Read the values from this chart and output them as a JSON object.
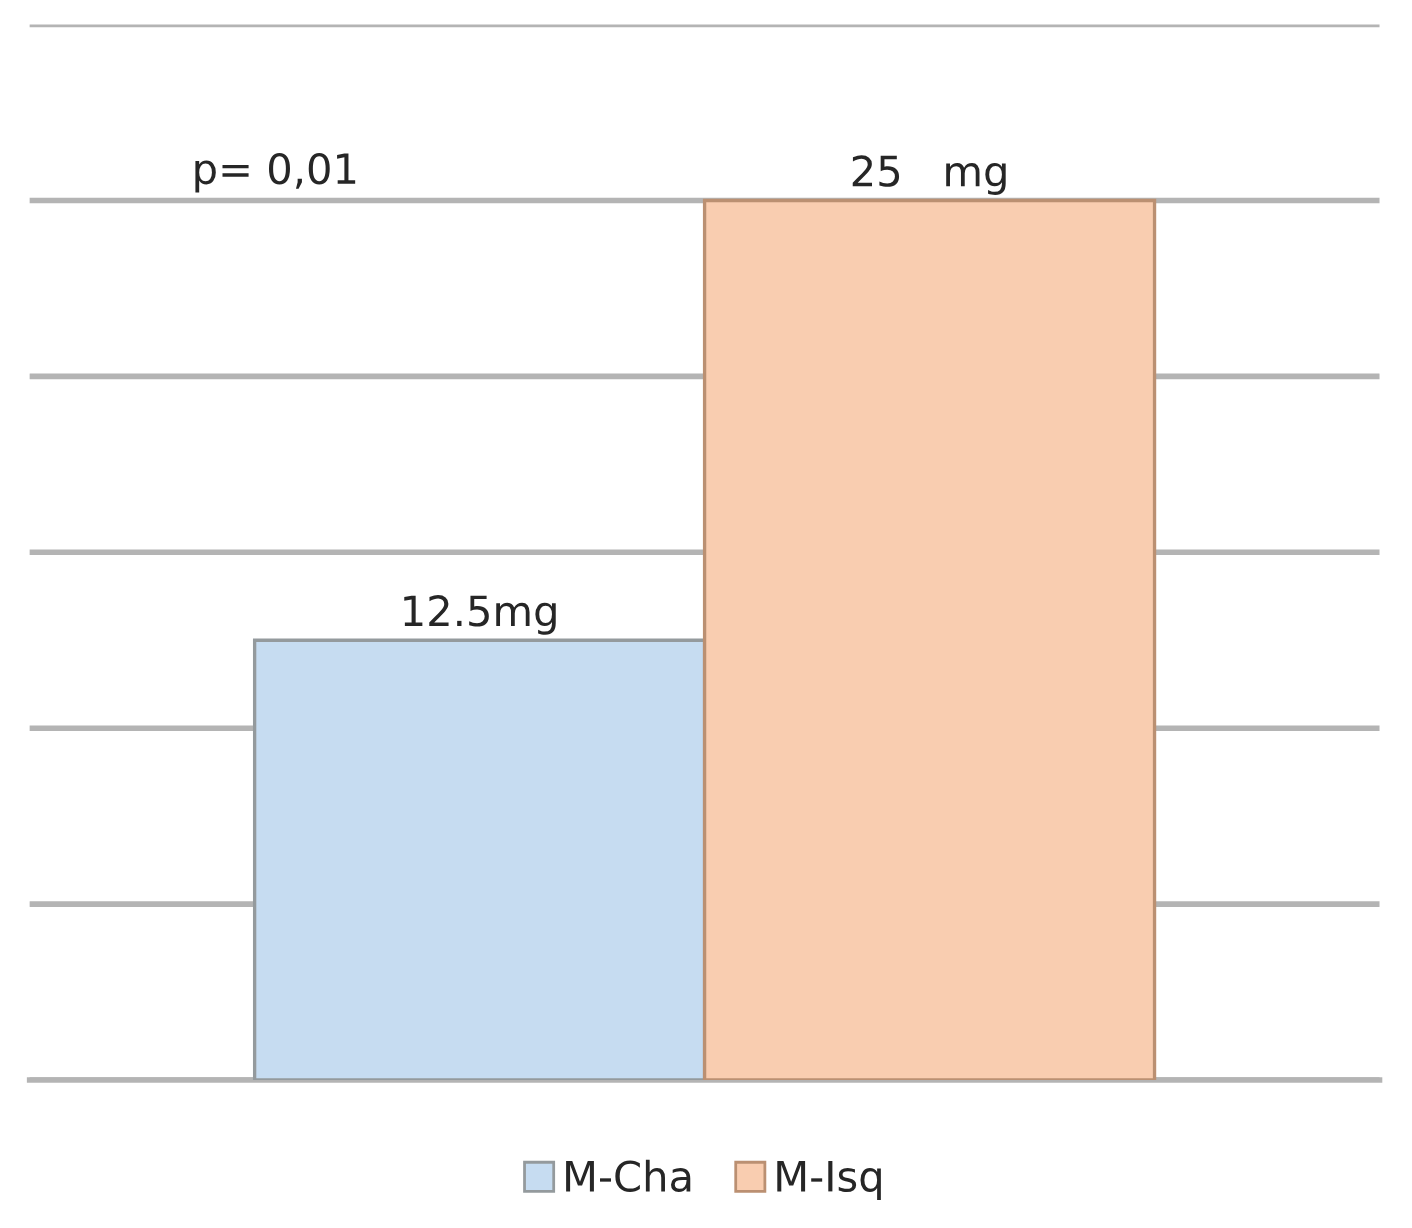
{
  "chart_data": {
    "type": "bar",
    "categories": [
      null
    ],
    "series": [
      {
        "name": "M-Cha",
        "color": "#c6dcf1",
        "values": [
          12.5
        ],
        "value_labels": [
          "12.5mg"
        ]
      },
      {
        "name": "M-Isq",
        "color": "#f9cdb0",
        "values": [
          25
        ],
        "value_labels": [
          "25   mg"
        ]
      }
    ],
    "ylim": [
      0,
      30
    ],
    "yticks": [
      {
        "value": 0,
        "label": null
      },
      {
        "value": 5,
        "label": null
      },
      {
        "value": 10,
        "label": null
      },
      {
        "value": 15,
        "label": null
      },
      {
        "value": 20,
        "label": null
      },
      {
        "value": 25,
        "label": null
      },
      {
        "value": 30,
        "label": null
      }
    ],
    "grid": "y",
    "legend": "bottom",
    "annotations": [
      "p= 0,01"
    ]
  }
}
